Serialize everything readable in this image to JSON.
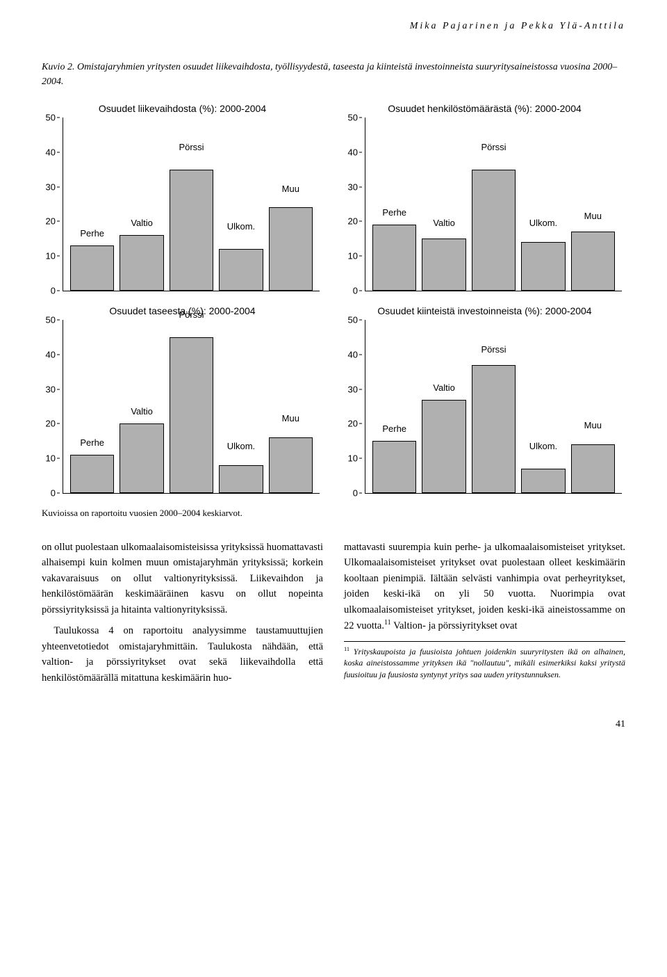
{
  "running_head": "Mika Pajarinen ja Pekka Ylä-Anttila",
  "figure_title_lead": "Kuvio 2.",
  "figure_title_rest": "Omistajaryhmien yritysten osuudet liikevaihdosta, työllisyydestä, taseesta ja kiinteistä investoinneista suuryritysaineistossa vuosina 2000–2004.",
  "global": {
    "y_max": 50,
    "y_ticks": [
      0,
      10,
      20,
      30,
      40,
      50
    ],
    "bar_fill": "#b0b0b0",
    "bar_border": "#000000",
    "bg": "#ffffff",
    "font_title_pt": 14,
    "font_axis_pt": 13
  },
  "charts": [
    {
      "title": "Osuudet liikevaihdosta (%): 2000-2004",
      "bars": [
        {
          "label": "Perhe",
          "value": 13,
          "label_y": 15
        },
        {
          "label": "Valtio",
          "value": 16,
          "label_y": 18
        },
        {
          "label": "Pörssi",
          "value": 35,
          "label_y": 40
        },
        {
          "label": "Ulkom.",
          "value": 12,
          "label_y": 17
        },
        {
          "label": "Muu",
          "value": 24,
          "label_y": 28
        }
      ]
    },
    {
      "title": "Osuudet henkilöstömäärästä (%): 2000-2004",
      "bars": [
        {
          "label": "Perhe",
          "value": 19,
          "label_y": 21
        },
        {
          "label": "Valtio",
          "value": 15,
          "label_y": 18
        },
        {
          "label": "Pörssi",
          "value": 35,
          "label_y": 40
        },
        {
          "label": "Ulkom.",
          "value": 14,
          "label_y": 18
        },
        {
          "label": "Muu",
          "value": 17,
          "label_y": 20
        }
      ]
    },
    {
      "title": "Osuudet taseesta (%): 2000-2004",
      "bars": [
        {
          "label": "Perhe",
          "value": 11,
          "label_y": 13
        },
        {
          "label": "Valtio",
          "value": 20,
          "label_y": 22
        },
        {
          "label": "Pörssi",
          "value": 45,
          "label_y": 50
        },
        {
          "label": "Ulkom.",
          "value": 8,
          "label_y": 12
        },
        {
          "label": "Muu",
          "value": 16,
          "label_y": 20
        }
      ]
    },
    {
      "title": "Osuudet kiinteistä investoinneista (%): 2000-2004",
      "bars": [
        {
          "label": "Perhe",
          "value": 15,
          "label_y": 17
        },
        {
          "label": "Valtio",
          "value": 27,
          "label_y": 29
        },
        {
          "label": "Pörssi",
          "value": 37,
          "label_y": 40
        },
        {
          "label": "Ulkom.",
          "value": 7,
          "label_y": 12
        },
        {
          "label": "Muu",
          "value": 14,
          "label_y": 18
        }
      ]
    }
  ],
  "caption_note": "Kuvioissa on raportoitu vuosien 2000–2004 keskiarvot.",
  "body_left_p1": "on ollut puolestaan ulkomaalaisomisteisissa yrityksissä huomattavasti alhaisempi kuin kolmen muun omistajaryhmän yrityksissä; korkein vakavaraisuus on ollut valtionyrityksissä. Liikevaihdon ja henkilöstömäärän keskimääräinen kasvu on ollut nopeinta pörssiyrityksissä ja hitainta valtionyrityksissä.",
  "body_left_p2": "Taulukossa 4 on raportoitu analyysimme taustamuuttujien yhteenvetotiedot omistajaryhmittäin. Taulukosta nähdään, että valtion- ja pörssiyritykset ovat sekä liikevaihdolla että henkilöstömäärällä mitattuna keskimäärin huo-",
  "body_right_p1_a": "mattavasti suurempia kuin perhe- ja ulkomaalaisomisteiset yritykset. Ulkomaalaisomisteiset yritykset ovat puolestaan olleet keskimäärin kooltaan pienimpiä. Iältään selvästi vanhimpia ovat perheyritykset, joiden keski-ikä on yli 50 vuotta. Nuorimpia ovat ulkomaalaisomisteiset yritykset, joiden keski-ikä aineistossamme on 22 vuotta.",
  "body_right_p1_b": " Valtion- ja pörssiyritykset ovat",
  "footnote_marker": "11",
  "footnote_text": "Yrityskaupoista ja fuusioista johtuen joidenkin suuryritysten ikä on alhainen, koska aineistossamme yrityksen ikä \"nollautuu\", mikäli esimerkiksi kaksi yritystä fuusioituu ja fuusiosta syntynyt yritys saa uuden yritystunnuksen.",
  "page_number": "41"
}
